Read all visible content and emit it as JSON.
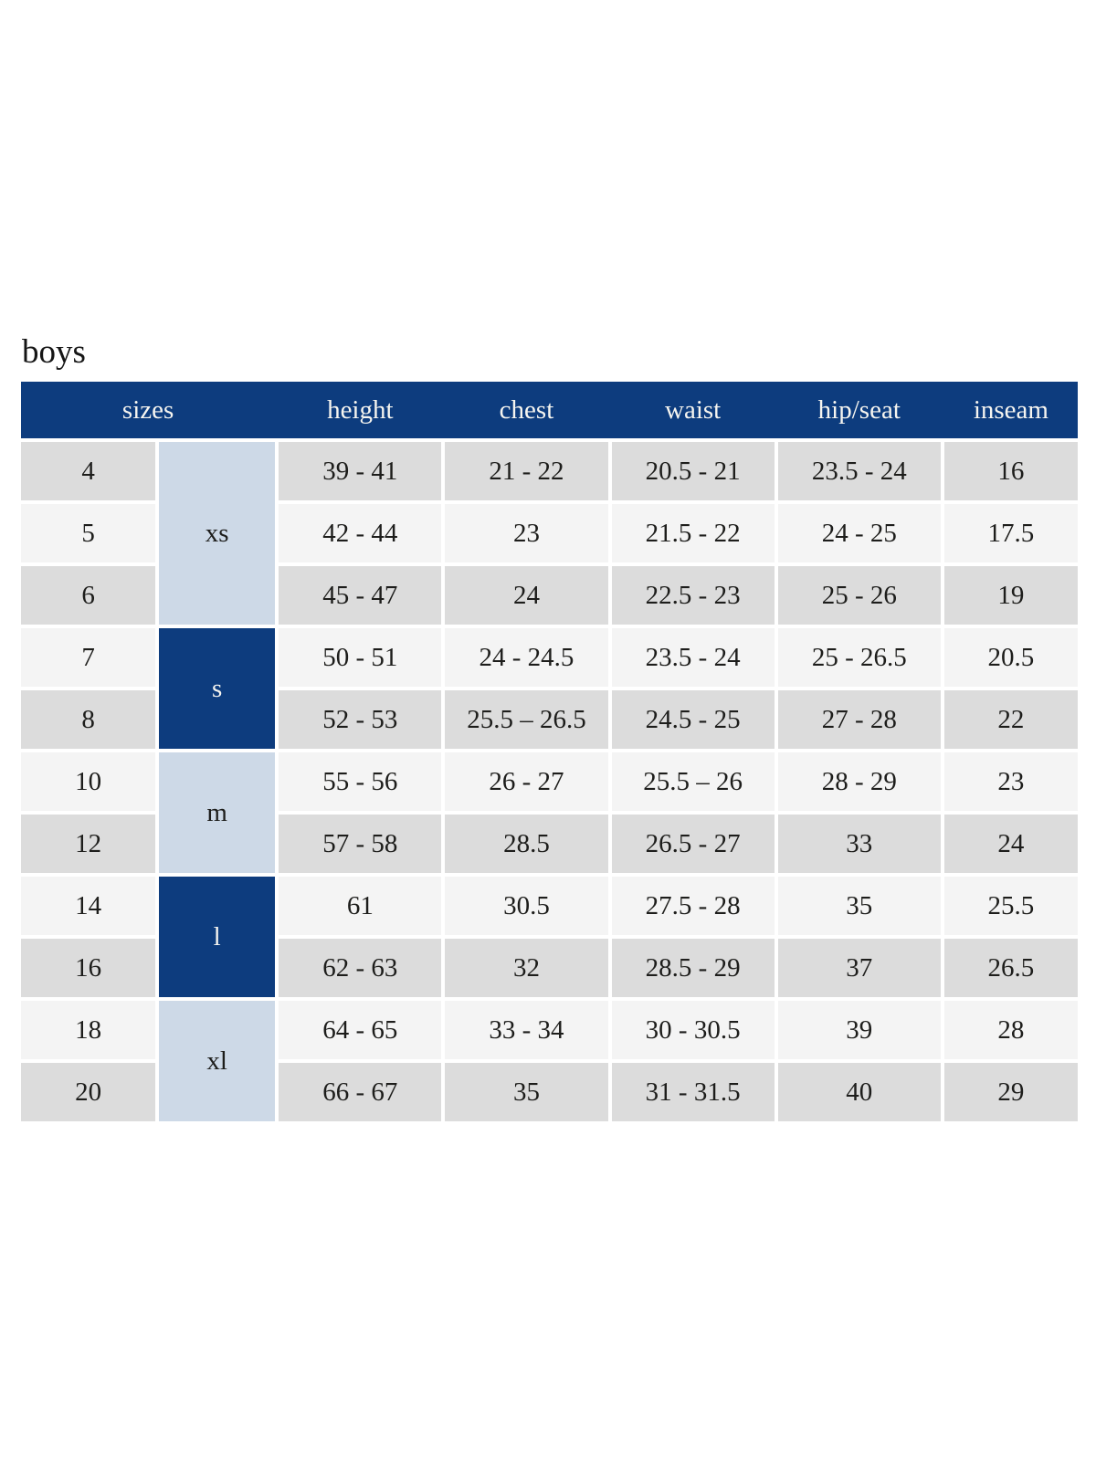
{
  "page": {
    "title": "boys"
  },
  "table": {
    "columns": [
      "sizes",
      "height",
      "chest",
      "waist",
      "hip/seat",
      "inseam"
    ],
    "groups": [
      {
        "label": "xs",
        "span": 3,
        "style": "light"
      },
      {
        "label": "s",
        "span": 2,
        "style": "dark"
      },
      {
        "label": "m",
        "span": 2,
        "style": "light"
      },
      {
        "label": "l",
        "span": 2,
        "style": "dark"
      },
      {
        "label": "xl",
        "span": 2,
        "style": "light"
      }
    ],
    "rows": [
      {
        "size": "4",
        "height": "39 - 41",
        "chest": "21 - 22",
        "waist": "20.5 - 21",
        "hip_seat": "23.5 - 24",
        "inseam": "16"
      },
      {
        "size": "5",
        "height": "42 - 44",
        "chest": "23",
        "waist": "21.5 - 22",
        "hip_seat": "24 - 25",
        "inseam": "17.5"
      },
      {
        "size": "6",
        "height": "45 - 47",
        "chest": "24",
        "waist": "22.5 - 23",
        "hip_seat": "25 - 26",
        "inseam": "19"
      },
      {
        "size": "7",
        "height": "50 - 51",
        "chest": "24 - 24.5",
        "waist": "23.5 - 24",
        "hip_seat": "25 - 26.5",
        "inseam": "20.5"
      },
      {
        "size": "8",
        "height": "52 - 53",
        "chest": "25.5 – 26.5",
        "waist": "24.5 - 25",
        "hip_seat": "27 - 28",
        "inseam": "22"
      },
      {
        "size": "10",
        "height": "55 - 56",
        "chest": "26 - 27",
        "waist": "25.5 – 26",
        "hip_seat": "28 - 29",
        "inseam": "23"
      },
      {
        "size": "12",
        "height": "57 - 58",
        "chest": "28.5",
        "waist": "26.5 - 27",
        "hip_seat": "33",
        "inseam": "24"
      },
      {
        "size": "14",
        "height": "61",
        "chest": "30.5",
        "waist": "27.5 - 28",
        "hip_seat": "35",
        "inseam": "25.5"
      },
      {
        "size": "16",
        "height": "62 - 63",
        "chest": "32",
        "waist": "28.5 - 29",
        "hip_seat": "37",
        "inseam": "26.5"
      },
      {
        "size": "18",
        "height": "64 - 65",
        "chest": "33 - 34",
        "waist": "30 - 30.5",
        "hip_seat": "39",
        "inseam": "28"
      },
      {
        "size": "20",
        "height": "66 - 67",
        "chest": "35",
        "waist": "31 - 31.5",
        "hip_seat": "40",
        "inseam": "29"
      }
    ],
    "colors": {
      "header_bg": "#0d3c7e",
      "header_text": "#f6f5f0",
      "group_dark_bg": "#0d3c7e",
      "group_dark_text": "#f6f5f0",
      "group_light_bg": "#cdd9e7",
      "row_odd_bg": "#dcdcdc",
      "row_even_bg": "#f4f4f4",
      "cell_text": "#1d1d1b",
      "title_text": "#151515"
    }
  }
}
